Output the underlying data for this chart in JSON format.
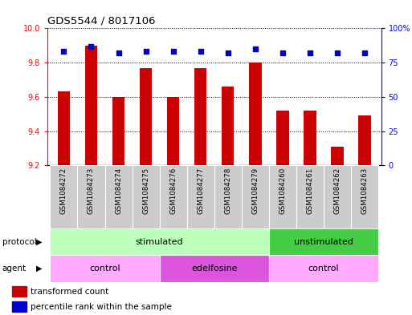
{
  "title": "GDS5544 / 8017106",
  "samples": [
    "GSM1084272",
    "GSM1084273",
    "GSM1084274",
    "GSM1084275",
    "GSM1084276",
    "GSM1084277",
    "GSM1084278",
    "GSM1084279",
    "GSM1084260",
    "GSM1084261",
    "GSM1084262",
    "GSM1084263"
  ],
  "transformed_count": [
    9.63,
    9.9,
    9.6,
    9.77,
    9.6,
    9.77,
    9.66,
    9.8,
    9.52,
    9.52,
    9.31,
    9.49
  ],
  "percentile_rank": [
    83,
    87,
    82,
    83,
    83,
    83,
    82,
    85,
    82,
    82,
    82,
    82
  ],
  "ylim_left": [
    9.2,
    10.0
  ],
  "ylim_right": [
    0,
    100
  ],
  "yticks_left": [
    9.2,
    9.4,
    9.6,
    9.8,
    10.0
  ],
  "yticks_right": [
    0,
    25,
    50,
    75,
    100
  ],
  "bar_color": "#cc0000",
  "dot_color": "#0000cc",
  "bar_width": 0.45,
  "stimulated_color_light": "#bbffbb",
  "stimulated_color_dark": "#44cc44",
  "agent_light": "#ffaaff",
  "agent_dark": "#dd55dd",
  "tick_bg_color": "#cccccc",
  "protocol_row": [
    {
      "text": "stimulated",
      "start": 0,
      "end": 8,
      "color": "#bbffbb"
    },
    {
      "text": "unstimulated",
      "start": 8,
      "end": 12,
      "color": "#44cc44"
    }
  ],
  "agent_row": [
    {
      "text": "control",
      "start": 0,
      "end": 4,
      "color": "#ffaaff"
    },
    {
      "text": "edelfosine",
      "start": 4,
      "end": 8,
      "color": "#dd55dd"
    },
    {
      "text": "control",
      "start": 8,
      "end": 12,
      "color": "#ffaaff"
    }
  ]
}
